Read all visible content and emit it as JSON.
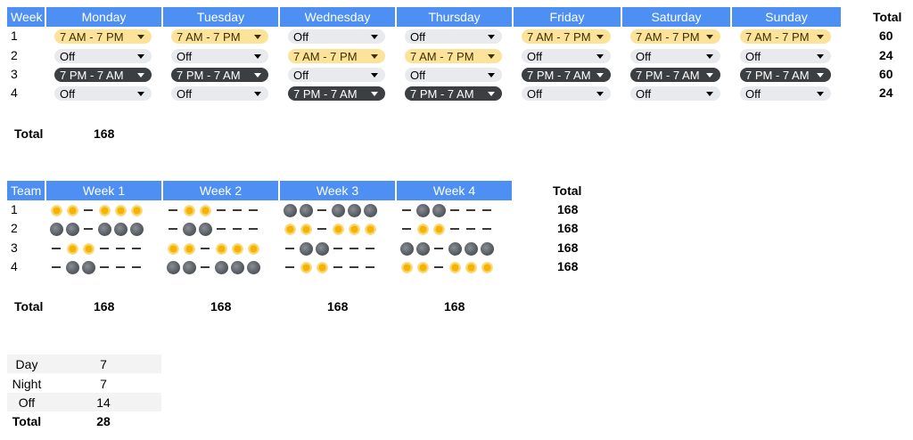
{
  "schedule": {
    "week_header": "Week",
    "total_header": "Total",
    "days": [
      "Monday",
      "Tuesday",
      "Wednesday",
      "Thursday",
      "Friday",
      "Saturday",
      "Sunday"
    ],
    "rows": [
      {
        "label": "1",
        "total": "60",
        "shifts": [
          "7 AM - 7 PM",
          "7 AM - 7 PM",
          "Off",
          "Off",
          "7 AM - 7 PM",
          "7 AM - 7 PM",
          "7 AM - 7 PM"
        ]
      },
      {
        "label": "2",
        "total": "24",
        "shifts": [
          "Off",
          "Off",
          "7 AM - 7 PM",
          "7 AM - 7 PM",
          "Off",
          "Off",
          "Off"
        ]
      },
      {
        "label": "3",
        "total": "60",
        "shifts": [
          "7 PM - 7 AM",
          "7 PM - 7 AM",
          "Off",
          "Off",
          "7 PM - 7 AM",
          "7 PM - 7 AM",
          "7 PM - 7 AM"
        ]
      },
      {
        "label": "4",
        "total": "24",
        "shifts": [
          "Off",
          "Off",
          "7 PM - 7 AM",
          "7 PM - 7 AM",
          "Off",
          "Off",
          "Off"
        ]
      }
    ],
    "grand_total_label": "Total",
    "grand_total": "168",
    "colors": {
      "header": "#4d8ff2",
      "day_chip": "#fde39a",
      "night_chip": "#3c3f42",
      "off_chip": "#e8eaed"
    }
  },
  "rotation": {
    "team_header": "Team",
    "total_header": "Total",
    "weeks": [
      "Week 1",
      "Week 2",
      "Week 3",
      "Week 4"
    ],
    "rows": [
      {
        "label": "1",
        "total": "168",
        "weeks": [
          "SS-SSS",
          "-SS---",
          "NN-NNN",
          "-NN---"
        ]
      },
      {
        "label": "2",
        "total": "168",
        "weeks": [
          "NN-NNN",
          "-NN---",
          "SS-SSS",
          "-SS---"
        ]
      },
      {
        "label": "3",
        "total": "168",
        "weeks": [
          "-SS---",
          "SS-SSS",
          "-NN---",
          "NN-NNN"
        ]
      },
      {
        "label": "4",
        "total": "168",
        "weeks": [
          "-NN---",
          "NN-NNN",
          "-SS---",
          "SS-SSS"
        ]
      }
    ],
    "footer_label": "Total",
    "week_totals": [
      "168",
      "168",
      "168",
      "168"
    ],
    "icons": {
      "S": "sun-icon",
      "N": "moon-icon",
      "-": "dash-icon"
    }
  },
  "summary": {
    "rows": [
      {
        "label": "Day",
        "value": "7"
      },
      {
        "label": "Night",
        "value": "7"
      },
      {
        "label": "Off",
        "value": "14"
      }
    ],
    "total_label": "Total",
    "total_value": "28"
  }
}
